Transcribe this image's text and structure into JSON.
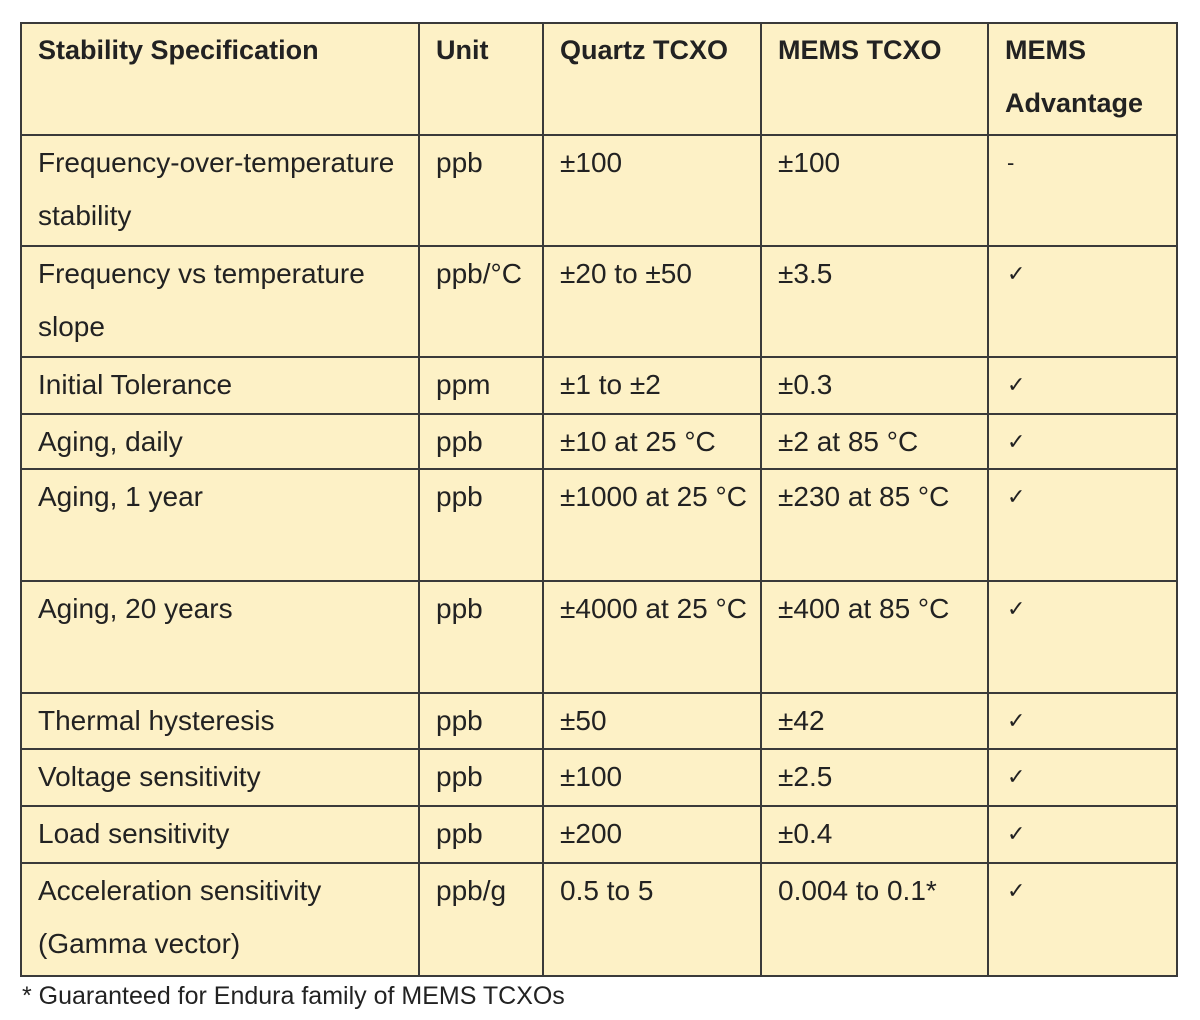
{
  "table": {
    "header": [
      "Stability Specification",
      "Unit",
      "Quartz TCXO",
      "MEMS TCXO",
      "MEMS Advantage"
    ],
    "rows": [
      [
        "Frequency-over-temperature stability",
        "ppb",
        "±100",
        "±100",
        "-"
      ],
      [
        "Frequency vs temperature slope",
        "ppb/°C",
        "±20 to ±50",
        "±3.5",
        "✓"
      ],
      [
        "Initial Tolerance",
        "ppm",
        "±1 to ±2",
        "±0.3",
        "✓"
      ],
      [
        "Aging, daily",
        "ppb",
        "±10 at 25 °C",
        "±2 at 85 °C",
        "✓"
      ],
      [
        "Aging, 1 year",
        "ppb",
        "±1000 at 25 °C",
        "±230 at 85 °C",
        "✓"
      ],
      [
        "Aging, 20 years",
        "ppb",
        "±4000 at 25 °C",
        "±400 at 85 °C",
        "✓"
      ],
      [
        "Thermal hysteresis",
        "ppb",
        "±50",
        "±42",
        "✓"
      ],
      [
        "Voltage sensitivity",
        "ppb",
        "±100",
        "±2.5",
        "✓"
      ],
      [
        "Load sensitivity",
        "ppb",
        "±200",
        "±0.4",
        "✓"
      ],
      [
        "Acceleration sensitivity (Gamma vector)",
        "ppb/g",
        "0.5 to 5",
        "0.004 to 0.1*",
        "✓"
      ]
    ]
  },
  "footnote": "* Guaranteed for Endura family of MEMS TCXOs"
}
